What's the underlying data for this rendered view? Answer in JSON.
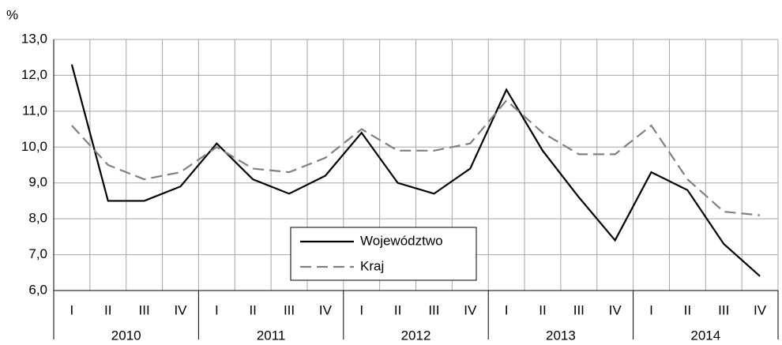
{
  "chart_data": {
    "type": "line",
    "y_axis_label": "%",
    "categories": [
      "I",
      "II",
      "III",
      "IV",
      "I",
      "II",
      "III",
      "IV",
      "I",
      "II",
      "III",
      "IV",
      "I",
      "II",
      "III",
      "IV",
      "I",
      "II",
      "III",
      "IV"
    ],
    "groups": [
      "2010",
      "2011",
      "2012",
      "2013",
      "2014"
    ],
    "series": [
      {
        "name": "Województwo",
        "color": "#000000",
        "dashed": false,
        "values": [
          12.3,
          8.5,
          8.5,
          8.9,
          10.1,
          9.1,
          8.7,
          9.2,
          10.4,
          9.0,
          8.7,
          9.4,
          11.6,
          9.9,
          8.6,
          7.4,
          9.3,
          8.8,
          7.3,
          6.4
        ]
      },
      {
        "name": "Kraj",
        "color": "#808080",
        "dashed": true,
        "values": [
          10.6,
          9.5,
          9.1,
          9.3,
          10.0,
          9.4,
          9.3,
          9.7,
          10.5,
          9.9,
          9.9,
          10.1,
          11.3,
          10.4,
          9.8,
          9.8,
          10.6,
          9.1,
          8.2,
          8.1
        ]
      }
    ],
    "ylim": [
      6,
      13
    ],
    "yticks": [
      {
        "value": 6,
        "label": "6,0"
      },
      {
        "value": 7,
        "label": "7,0"
      },
      {
        "value": 8,
        "label": "8,0"
      },
      {
        "value": 9,
        "label": "9,0"
      },
      {
        "value": 10,
        "label": "10,0"
      },
      {
        "value": 11,
        "label": "11,0"
      },
      {
        "value": 12,
        "label": "12,0"
      },
      {
        "value": 13,
        "label": "13,0"
      }
    ],
    "grid": true,
    "legend": "lower center"
  }
}
